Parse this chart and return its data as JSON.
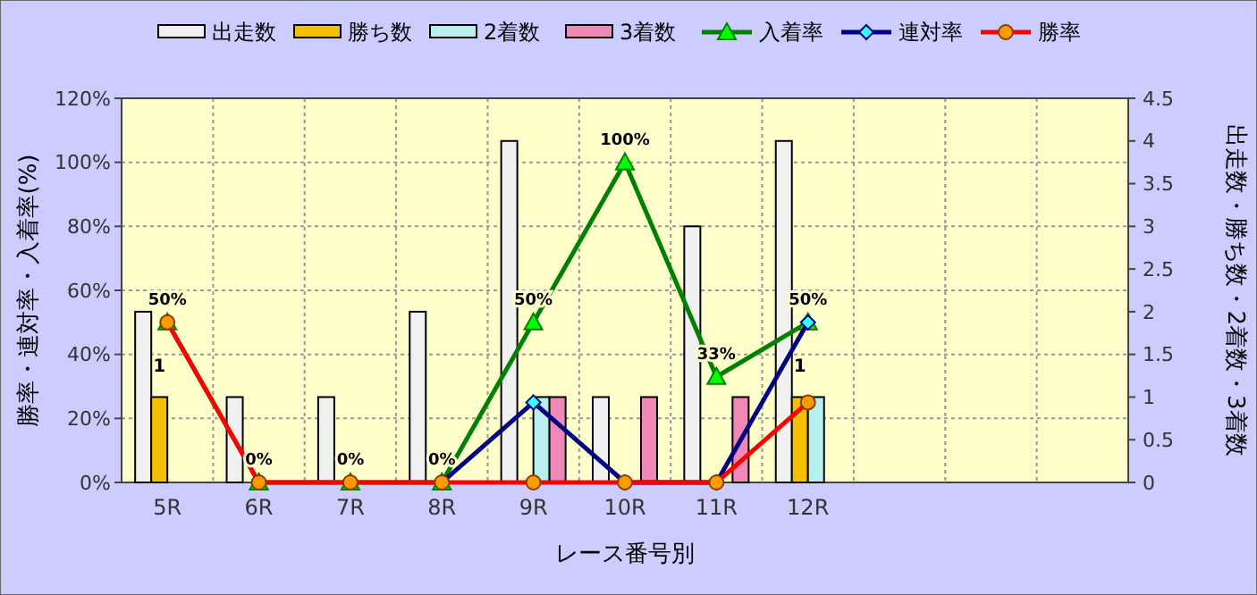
{
  "chart_data": {
    "type": "bar",
    "xlabel": "レース番号別",
    "ylabel": "勝率・連対率・入着率(%)",
    "y2label": "出走数・勝ち数・2着数・3着数",
    "categories": [
      "5R",
      "6R",
      "7R",
      "8R",
      "9R",
      "10R",
      "11R",
      "12R",
      null,
      null,
      null
    ],
    "series": [
      {
        "name": "出走数",
        "axis": "y2",
        "color": "#f0f0f0",
        "values": [
          2,
          1,
          1,
          2,
          4,
          1,
          3,
          4,
          null,
          null,
          null
        ]
      },
      {
        "name": "勝ち数",
        "axis": "y2",
        "color": "#f5c000",
        "values": [
          1,
          0,
          0,
          0,
          0,
          0,
          0,
          1,
          null,
          null,
          null
        ],
        "value_labels": [
          "1",
          null,
          null,
          null,
          null,
          null,
          null,
          "1",
          null,
          null,
          null
        ]
      },
      {
        "name": "2着数",
        "axis": "y2",
        "color": "#b8f0f0",
        "values": [
          0,
          0,
          0,
          0,
          1,
          0,
          0,
          1,
          null,
          null,
          null
        ]
      },
      {
        "name": "3着数",
        "axis": "y2",
        "color": "#f088b8",
        "values": [
          0,
          0,
          0,
          0,
          1,
          1,
          1,
          0,
          null,
          null,
          null
        ]
      },
      {
        "name": "入着率",
        "type": "line",
        "color": "#008000",
        "marker": "triangle",
        "values": [
          50,
          0,
          0,
          0,
          50,
          100,
          33,
          50,
          null,
          null,
          null
        ],
        "value_labels": [
          "50%",
          "0%",
          "0%",
          "0%",
          "50%",
          "100%",
          "33%",
          "50%",
          null,
          null,
          null
        ]
      },
      {
        "name": "連対率",
        "type": "line",
        "color": "#000080",
        "marker": "diamond",
        "values": [
          null,
          null,
          null,
          0,
          25,
          0,
          0,
          50,
          null,
          null,
          null
        ]
      },
      {
        "name": "勝率",
        "type": "line",
        "color": "#ff0000",
        "marker": "circle",
        "values": [
          50,
          0,
          0,
          0,
          0,
          0,
          0,
          25,
          null,
          null,
          null
        ]
      }
    ],
    "ylim": [
      0,
      120
    ],
    "yticks": [
      {
        "value": 0,
        "label": "0%"
      },
      {
        "value": 20,
        "label": "20%"
      },
      {
        "value": 40,
        "label": "40%"
      },
      {
        "value": 60,
        "label": "60%"
      },
      {
        "value": 80,
        "label": "80%"
      },
      {
        "value": 100,
        "label": "100%"
      },
      {
        "value": 120,
        "label": "120%"
      }
    ],
    "y2lim": [
      0,
      4.5
    ],
    "y2ticks": [
      0,
      0.5,
      1,
      1.5,
      2,
      2.5,
      3,
      3.5,
      4,
      4.5
    ],
    "grid": true,
    "legend": "top",
    "line_style": "solid"
  }
}
